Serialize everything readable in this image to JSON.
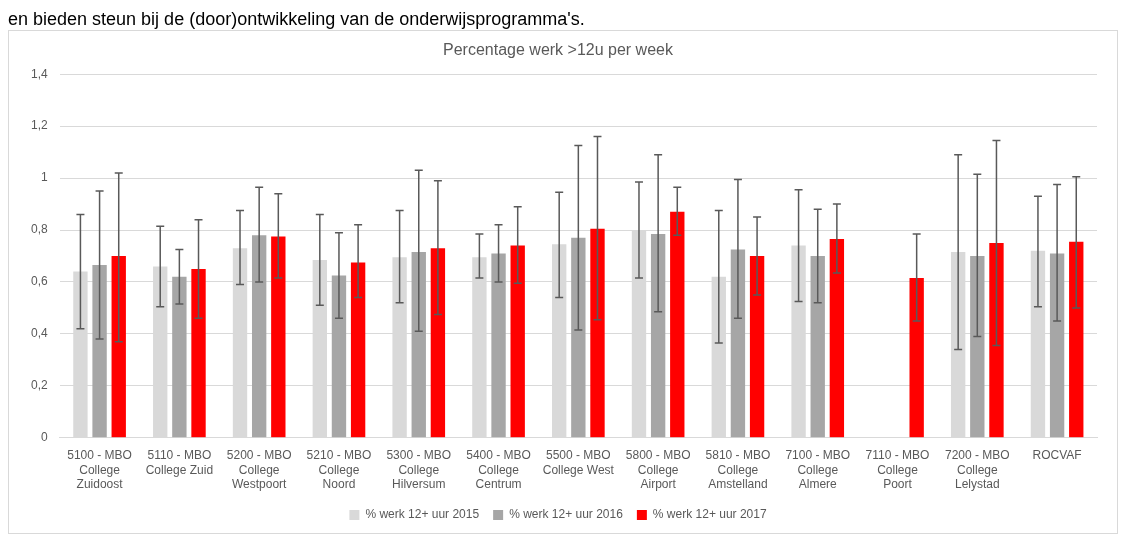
{
  "chart_data": {
    "type": "bar",
    "title": "Percentage werk >12u per week",
    "annotations": [
      "en bieden steun bij de (door)ontwikkeling van de onderwijsprogramma's."
    ],
    "categories": [
      "5100 - MBO College Zuidoost",
      "5110 - MBO College Zuid",
      "5200 - MBO College Westpoort",
      "5210 - MBO College Noord",
      "5300 - MBO College Hilversum",
      "5400 - MBO College Centrum",
      "5500 - MBO College West",
      "5800 - MBO College Airport",
      "5810 - MBO College Amstelland",
      "7100 - MBO College Almere",
      "7110 - MBO College Poort",
      "7200 - MBO College Lelystad",
      "ROCVAF"
    ],
    "series": [
      {
        "name": "% werk 12+ uur 2015",
        "color": "#d9d9d9",
        "values": [
          0.64,
          0.66,
          0.73,
          0.685,
          0.695,
          0.695,
          0.745,
          0.8,
          0.62,
          0.74,
          null,
          0.715,
          0.72
        ],
        "errors": [
          [
            0.42,
            0.86
          ],
          [
            0.505,
            0.815
          ],
          [
            0.59,
            0.875
          ],
          [
            0.51,
            0.86
          ],
          [
            0.52,
            0.875
          ],
          [
            0.615,
            0.785
          ],
          [
            0.54,
            0.945
          ],
          [
            0.615,
            0.985
          ],
          [
            0.365,
            0.875
          ],
          [
            0.525,
            0.955
          ],
          null,
          [
            0.34,
            1.09
          ],
          [
            0.505,
            0.93
          ]
        ]
      },
      {
        "name": "% werk 12+ uur 2016",
        "color": "#a6a6a6",
        "values": [
          0.665,
          0.62,
          0.78,
          0.625,
          0.715,
          0.71,
          0.77,
          0.785,
          0.725,
          0.7,
          null,
          0.7,
          0.71
        ],
        "errors": [
          [
            0.38,
            0.95
          ],
          [
            0.515,
            0.725
          ],
          [
            0.6,
            0.965
          ],
          [
            0.46,
            0.79
          ],
          [
            0.41,
            1.03
          ],
          [
            0.6,
            0.82
          ],
          [
            0.415,
            1.125
          ],
          [
            0.485,
            1.09
          ],
          [
            0.46,
            0.995
          ],
          [
            0.52,
            0.88
          ],
          null,
          [
            0.39,
            1.015
          ],
          [
            0.45,
            0.975
          ]
        ]
      },
      {
        "name": "% werk 12+ uur 2017",
        "color": "#ff0000",
        "values": [
          0.7,
          0.65,
          0.775,
          0.675,
          0.73,
          0.74,
          0.805,
          0.87,
          0.7,
          0.765,
          0.615,
          0.75,
          0.755
        ],
        "errors": [
          [
            0.37,
            1.02
          ],
          [
            0.46,
            0.84
          ],
          [
            0.615,
            0.94
          ],
          [
            0.54,
            0.82
          ],
          [
            0.475,
            0.99
          ],
          [
            0.595,
            0.89
          ],
          [
            0.455,
            1.16
          ],
          [
            0.78,
            0.965
          ],
          [
            0.55,
            0.85
          ],
          [
            0.635,
            0.9
          ],
          [
            0.45,
            0.785
          ],
          [
            0.355,
            1.145
          ],
          [
            0.5,
            1.005
          ]
        ]
      }
    ],
    "ylim": [
      0,
      1.4
    ],
    "yticks": [
      {
        "value": 0,
        "label": "0"
      },
      {
        "value": 0.2,
        "label": "0,2"
      },
      {
        "value": 0.4,
        "label": "0,4"
      },
      {
        "value": 0.6,
        "label": "0,6"
      },
      {
        "value": 0.8,
        "label": "0,8"
      },
      {
        "value": 1,
        "label": "1"
      },
      {
        "value": 1.2,
        "label": "1,2"
      },
      {
        "value": 1.4,
        "label": "1,4"
      }
    ],
    "grid": "y",
    "legend": "bottom"
  }
}
